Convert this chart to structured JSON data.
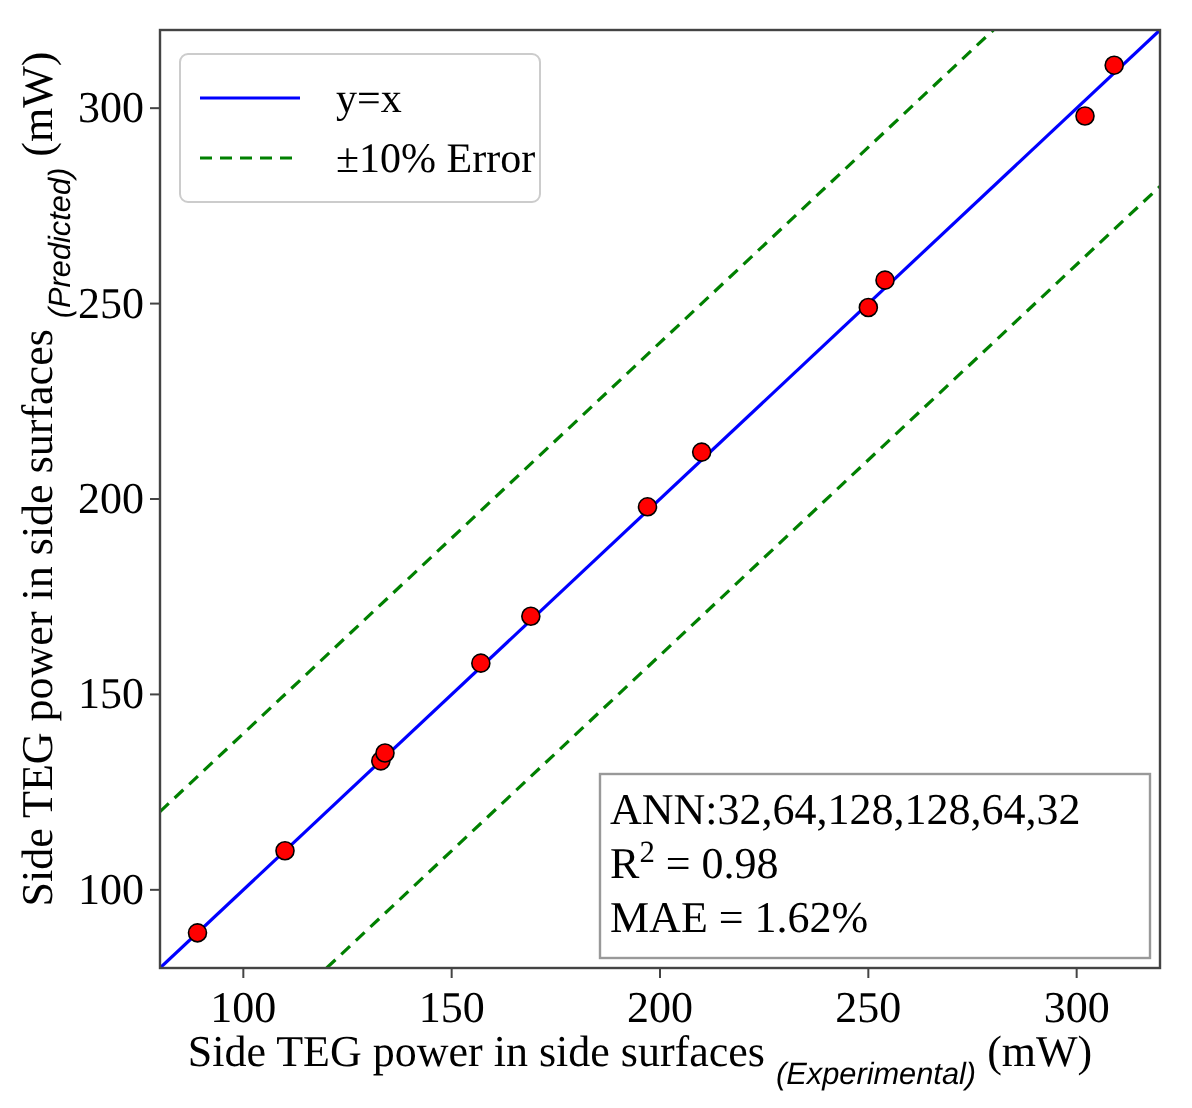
{
  "chart_data": {
    "type": "scatter",
    "xlabel": "Side TEG power in side surfaces $_{(Experimental)}$ (mW)",
    "ylabel": "Side TEG power in side surfaces $_{(Predicted)}$ (mW)",
    "xlim": [
      80,
      320
    ],
    "ylim": [
      80,
      320
    ],
    "xticks": [
      100,
      150,
      200,
      250,
      300
    ],
    "yticks": [
      100,
      150,
      200,
      250,
      300
    ],
    "grid": false,
    "legend": "top left",
    "marker": "circle",
    "series": [
      {
        "type": "line",
        "name": "y=x",
        "color": "#0000ff",
        "line_style": "solid",
        "marker": "none",
        "x": [
          80,
          320
        ],
        "values": [
          80,
          320
        ]
      },
      {
        "type": "line",
        "name": "±10% Error",
        "color": "#008000",
        "line_style": "dashed",
        "marker": "none",
        "x": [
          80,
          280
        ],
        "values": [
          120,
          320
        ]
      },
      {
        "type": "line",
        "color": "#008000",
        "line_style": "dashed",
        "marker": "none",
        "x": [
          120,
          320
        ],
        "values": [
          80,
          280
        ]
      },
      {
        "color": "#ff0000",
        "x": [
          89,
          110,
          133,
          134,
          157,
          169,
          197,
          210,
          250,
          254,
          302,
          309
        ],
        "values": [
          89,
          110,
          133,
          135,
          158,
          170,
          198,
          212,
          249,
          256,
          298,
          311
        ]
      }
    ],
    "annotations": [
      "ANN:32,64,128,128,64,32",
      "R$^{2}$ = 0.98",
      "MAE = 1.62%"
    ]
  }
}
